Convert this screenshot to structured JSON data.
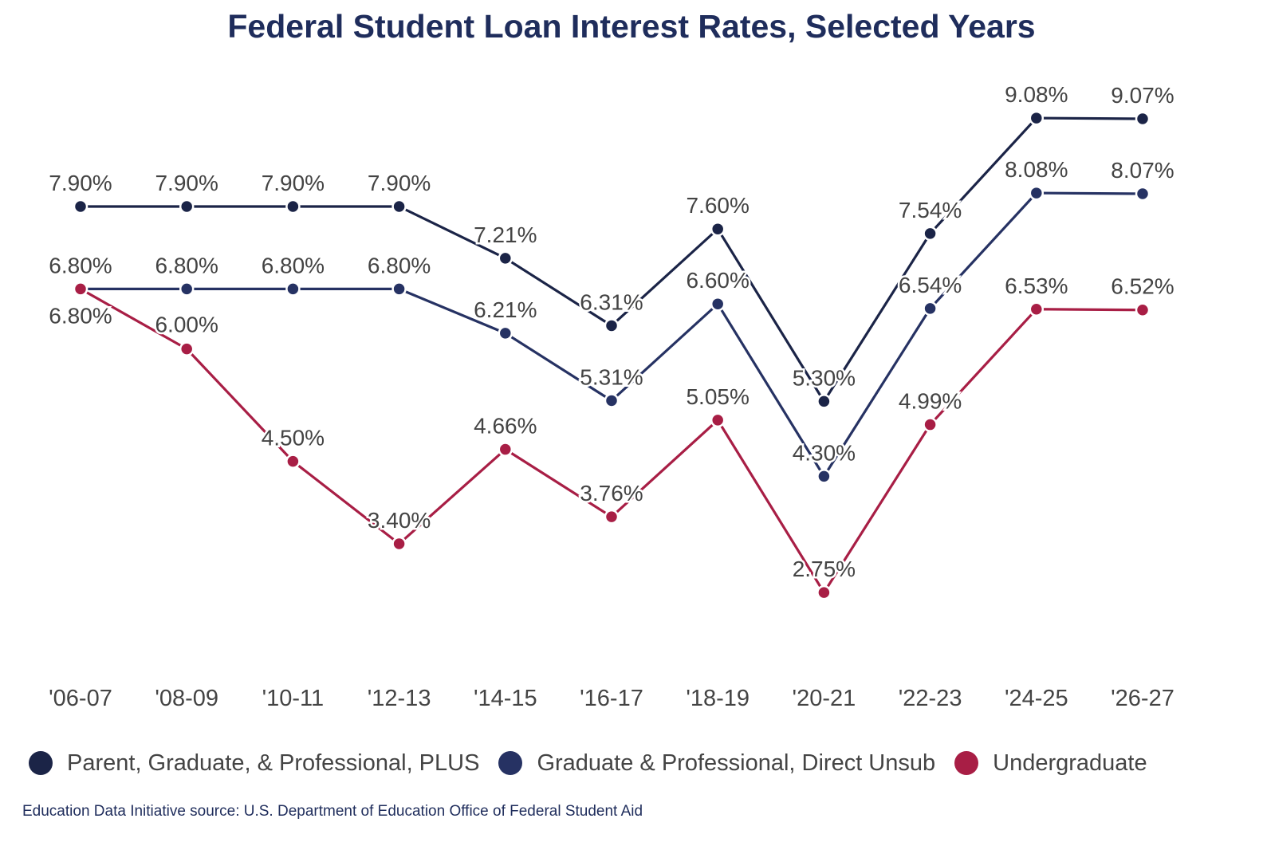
{
  "chart_data": {
    "type": "line",
    "title": "Federal Student Loan Interest Rates, Selected Years",
    "xlabel": "",
    "ylabel": "",
    "categories": [
      "'06-07",
      "'08-09",
      "'10-11",
      "'12-13",
      "'14-15",
      "'16-17",
      "'18-19",
      "'20-21",
      "'22-23",
      "'24-25",
      "'26-27"
    ],
    "ylim": [
      2.0,
      9.5
    ],
    "grid": false,
    "legend_position": "bottom",
    "series": [
      {
        "name": "Parent, Graduate, & Professional, PLUS",
        "color": "#1b2447",
        "values": [
          7.9,
          7.9,
          7.9,
          7.9,
          7.21,
          6.31,
          7.6,
          5.3,
          7.54,
          9.08,
          9.07
        ],
        "labels": [
          "7.90%",
          "7.90%",
          "7.90%",
          "7.90%",
          "7.21%",
          "6.31%",
          "7.60%",
          "5.30%",
          "7.54%",
          "9.08%",
          "9.07%"
        ]
      },
      {
        "name": "Graduate & Professional, Direct Unsub",
        "color": "#263263",
        "values": [
          6.8,
          6.8,
          6.8,
          6.8,
          6.21,
          5.31,
          6.6,
          4.3,
          6.54,
          8.08,
          8.07
        ],
        "labels": [
          "6.80%",
          "6.80%",
          "6.80%",
          "6.80%",
          "6.21%",
          "5.31%",
          "6.60%",
          "4.30%",
          "6.54%",
          "8.08%",
          "8.07%"
        ]
      },
      {
        "name": "Undergraduate",
        "color": "#a81e45",
        "values": [
          6.8,
          6.0,
          4.5,
          3.4,
          4.66,
          3.76,
          5.05,
          2.75,
          4.99,
          6.53,
          6.52
        ],
        "labels": [
          "6.80%",
          "6.00%",
          "4.50%",
          "3.40%",
          "4.66%",
          "3.76%",
          "5.05%",
          "2.75%",
          "4.99%",
          "6.53%",
          "6.52%"
        ]
      }
    ]
  },
  "source_note": "Education Data Initiative source: U.S. Department of Education Office of Federal Student Aid"
}
